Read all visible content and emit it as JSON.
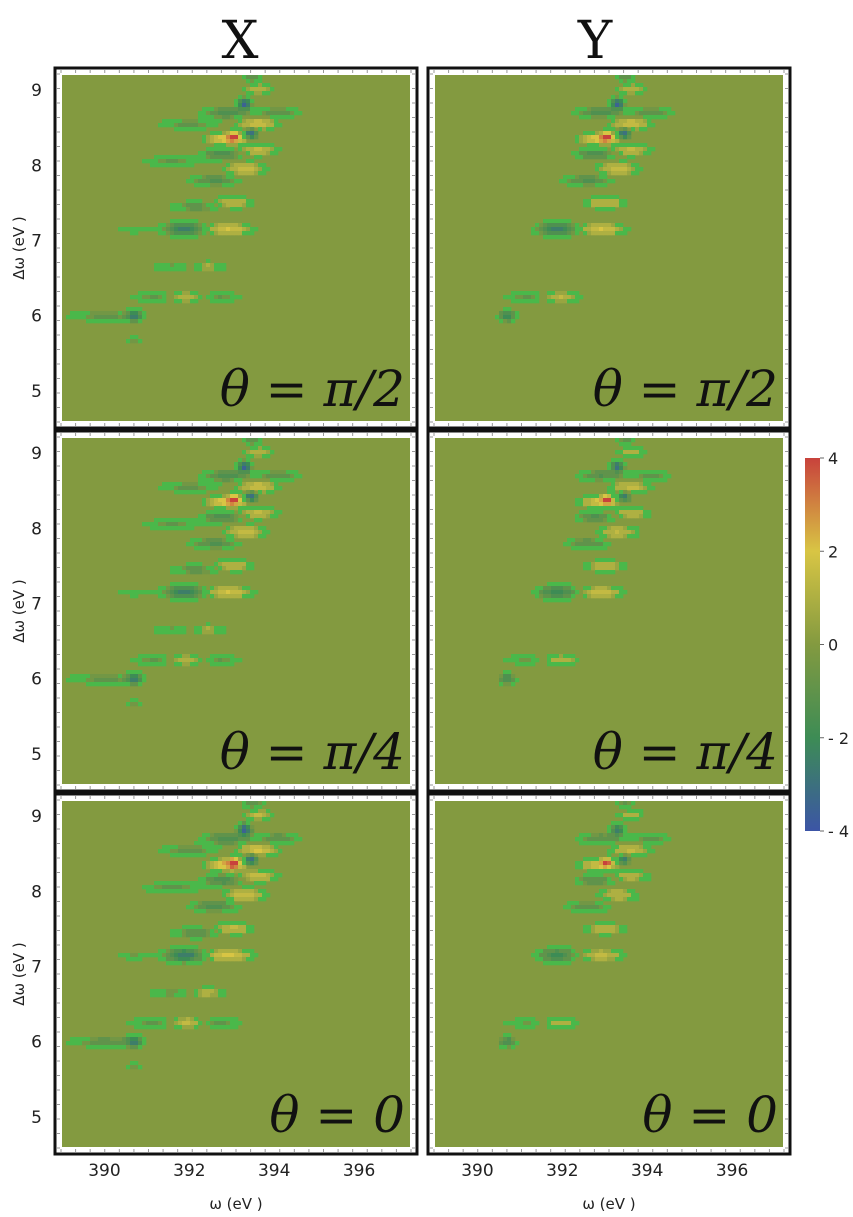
{
  "figure": {
    "column_titles": [
      "X",
      "Y"
    ],
    "xlabel": "ω (eV )",
    "ylabel": "Δω (eV )",
    "panel_labels": [
      "θ = π/2",
      "θ = π/4",
      "θ = 0"
    ],
    "colors": {
      "background": "#839a40",
      "neg_max": "#3c55a6",
      "neg_mid": "#3d8c55",
      "zero": "#839a40",
      "pos_mid": "#d8c544",
      "pos_max": "#c8423c",
      "green_ring": "#4ab84a"
    }
  },
  "chart_data": {
    "type": "heatmap",
    "layout": "3 rows x 2 columns (rows: θ = π/2, π/4, 0; columns: X, Y)",
    "xlabel": "ω (eV )",
    "ylabel": "Δω (eV )",
    "xlim": [
      389.0,
      397.2
    ],
    "ylim": [
      4.6,
      9.2
    ],
    "xticks": [
      390,
      392,
      394,
      396
    ],
    "yticks": [
      5,
      6,
      7,
      8,
      9
    ],
    "colorbar": {
      "range": [
        -4,
        4
      ],
      "ticks": [
        4,
        2,
        0,
        -2,
        -4
      ],
      "tick_labels": [
        "4",
        "2",
        "0",
        "- 2",
        "- 4"
      ]
    },
    "features": [
      {
        "x": 390.0,
        "y": 6.0,
        "amp": -0.9,
        "sx": 0.55,
        "sy": 0.05,
        "panels": "X"
      },
      {
        "x": 390.7,
        "y": 6.0,
        "amp": -2.2,
        "sx": 0.12,
        "sy": 0.05,
        "panels": "all"
      },
      {
        "x": 390.7,
        "y": 5.68,
        "amp": -0.8,
        "sx": 0.1,
        "sy": 0.04,
        "panels": "X"
      },
      {
        "x": 391.3,
        "y": 6.25,
        "amp": -0.9,
        "sx": 0.45,
        "sy": 0.05,
        "panels": "all"
      },
      {
        "x": 391.9,
        "y": 6.25,
        "amp": 1.6,
        "sx": 0.3,
        "sy": 0.05,
        "panels": "all"
      },
      {
        "x": 392.7,
        "y": 6.25,
        "amp": -0.8,
        "sx": 0.35,
        "sy": 0.05,
        "panels": "X"
      },
      {
        "x": 391.6,
        "y": 6.65,
        "amp": -0.7,
        "sx": 0.35,
        "sy": 0.05,
        "panels": "X"
      },
      {
        "x": 392.4,
        "y": 6.65,
        "amp": 0.9,
        "sx": 0.3,
        "sy": 0.05,
        "panels": "X"
      },
      {
        "x": 390.7,
        "y": 7.15,
        "amp": -0.6,
        "sx": 0.3,
        "sy": 0.04,
        "panels": "X"
      },
      {
        "x": 391.9,
        "y": 7.15,
        "amp": -2.5,
        "sx": 0.3,
        "sy": 0.06,
        "panels": "all"
      },
      {
        "x": 392.9,
        "y": 7.15,
        "amp": 1.8,
        "sx": 0.35,
        "sy": 0.05,
        "panels": "all"
      },
      {
        "x": 392.2,
        "y": 7.45,
        "amp": -1.0,
        "sx": 0.4,
        "sy": 0.05,
        "panels": "X"
      },
      {
        "x": 393.0,
        "y": 7.5,
        "amp": 1.4,
        "sx": 0.3,
        "sy": 0.05,
        "panels": "all"
      },
      {
        "x": 392.6,
        "y": 7.8,
        "amp": -1.4,
        "sx": 0.35,
        "sy": 0.05,
        "panels": "all"
      },
      {
        "x": 393.3,
        "y": 7.95,
        "amp": 1.5,
        "sx": 0.3,
        "sy": 0.06,
        "panels": "all"
      },
      {
        "x": 391.6,
        "y": 8.05,
        "amp": -0.8,
        "sx": 0.45,
        "sy": 0.05,
        "panels": "X"
      },
      {
        "x": 392.8,
        "y": 8.15,
        "amp": -1.6,
        "sx": 0.3,
        "sy": 0.05,
        "panels": "all"
      },
      {
        "x": 393.6,
        "y": 8.2,
        "amp": 1.4,
        "sx": 0.3,
        "sy": 0.05,
        "panels": "all"
      },
      {
        "x": 392.9,
        "y": 8.35,
        "amp": 2.4,
        "sx": 0.3,
        "sy": 0.05,
        "panels": "all"
      },
      {
        "x": 393.05,
        "y": 8.38,
        "amp": 3.6,
        "sx": 0.08,
        "sy": 0.04,
        "panels": "all"
      },
      {
        "x": 393.45,
        "y": 8.42,
        "amp": -3.3,
        "sx": 0.1,
        "sy": 0.05,
        "panels": "all"
      },
      {
        "x": 392.0,
        "y": 8.55,
        "amp": -0.9,
        "sx": 0.45,
        "sy": 0.05,
        "panels": "X"
      },
      {
        "x": 393.6,
        "y": 8.55,
        "amp": 1.8,
        "sx": 0.3,
        "sy": 0.05,
        "panels": "all"
      },
      {
        "x": 392.9,
        "y": 8.7,
        "amp": -1.5,
        "sx": 0.35,
        "sy": 0.05,
        "panels": "all"
      },
      {
        "x": 394.1,
        "y": 8.7,
        "amp": -1.1,
        "sx": 0.3,
        "sy": 0.05,
        "panels": "all"
      },
      {
        "x": 393.3,
        "y": 8.82,
        "amp": -3.4,
        "sx": 0.1,
        "sy": 0.05,
        "panels": "all"
      },
      {
        "x": 393.6,
        "y": 9.02,
        "amp": 1.4,
        "sx": 0.2,
        "sy": 0.05,
        "panels": "all"
      },
      {
        "x": 393.5,
        "y": 9.2,
        "amp": -1.1,
        "sx": 0.15,
        "sy": 0.1,
        "panels": "all"
      }
    ]
  }
}
